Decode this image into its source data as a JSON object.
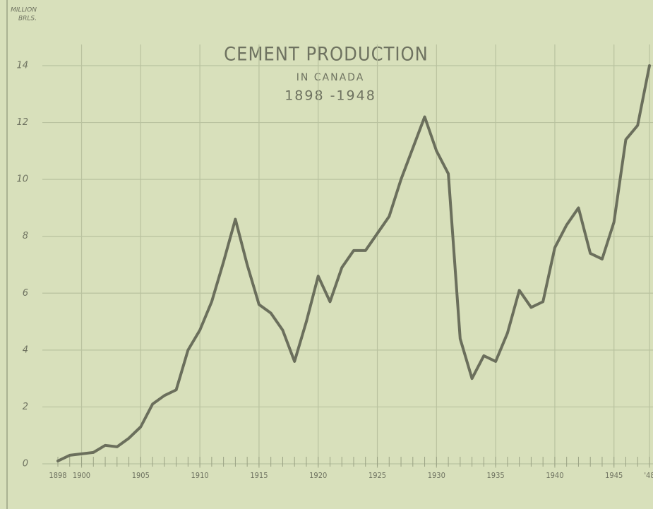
{
  "chart_data": {
    "type": "line",
    "title": "CEMENT PRODUCTION",
    "subtitle": "IN CANADA",
    "period": "1898 -1948",
    "y_label": [
      "MILLION",
      "BRLS."
    ],
    "x": [
      1898,
      1899,
      1900,
      1901,
      1902,
      1903,
      1904,
      1905,
      1906,
      1907,
      1908,
      1909,
      1910,
      1911,
      1912,
      1913,
      1914,
      1915,
      1916,
      1917,
      1918,
      1919,
      1920,
      1921,
      1922,
      1923,
      1924,
      1925,
      1926,
      1927,
      1928,
      1929,
      1930,
      1931,
      1932,
      1933,
      1934,
      1935,
      1936,
      1937,
      1938,
      1939,
      1940,
      1941,
      1942,
      1943,
      1944,
      1945,
      1946,
      1947,
      1948
    ],
    "series": [
      {
        "color": "#6b6f5c",
        "values": [
          0.1,
          0.3,
          0.35,
          0.4,
          0.65,
          0.6,
          0.9,
          1.3,
          2.1,
          2.4,
          2.6,
          4.0,
          4.7,
          5.7,
          7.1,
          8.6,
          7.0,
          5.6,
          5.3,
          4.7,
          3.6,
          5.0,
          6.6,
          5.7,
          6.9,
          7.5,
          7.5,
          8.1,
          8.7,
          10.0,
          11.1,
          12.2,
          11.0,
          10.2,
          4.4,
          3.0,
          3.8,
          3.6,
          4.6,
          6.1,
          5.5,
          5.7,
          7.6,
          8.4,
          9.0,
          7.4,
          7.2,
          8.5,
          11.4,
          11.9,
          14.0
        ]
      }
    ],
    "xlim": [
      1898,
      1948
    ],
    "xticks": [
      1898,
      1900,
      1905,
      1910,
      1915,
      1920,
      1925,
      1930,
      1935,
      1940,
      1945,
      {
        "value": 1948,
        "label": "'48"
      }
    ],
    "ylim": [
      0,
      14
    ],
    "yticks": [
      0,
      2,
      4,
      6,
      8,
      10,
      12,
      14
    ],
    "grid": true
  }
}
